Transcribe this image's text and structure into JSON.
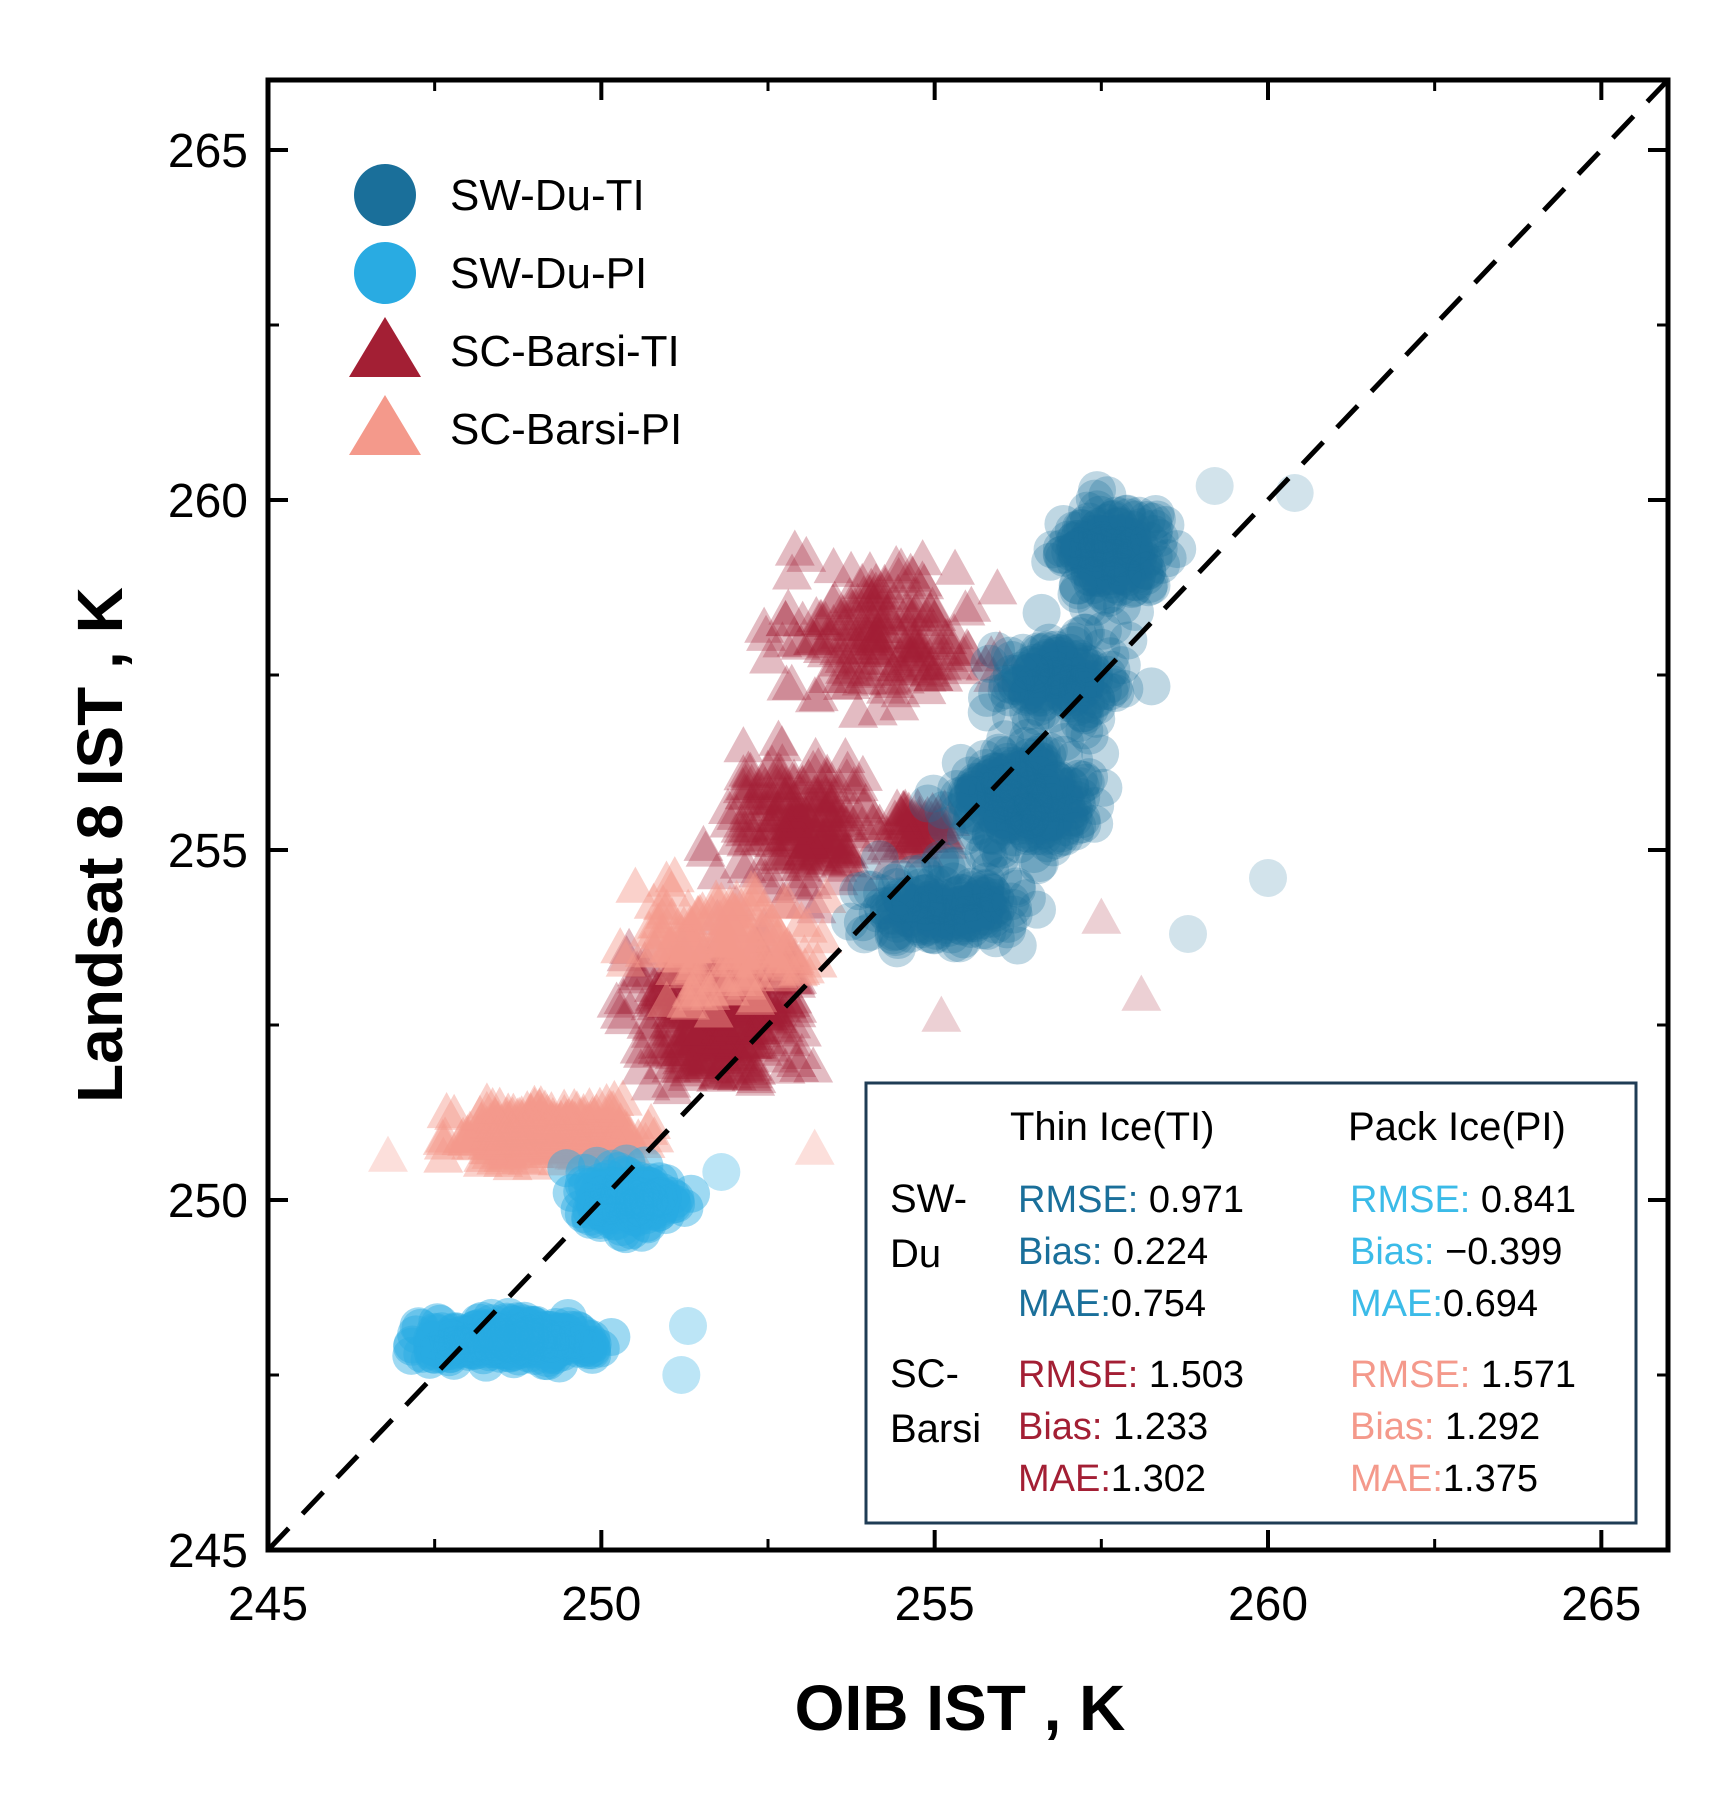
{
  "chart_data": {
    "type": "scatter",
    "title": "",
    "xlabel": "OIB IST , K",
    "ylabel": "Landsat 8 IST , K",
    "xlim": [
      245,
      266
    ],
    "ylim": [
      245,
      266
    ],
    "xticks": [
      245,
      250,
      255,
      260,
      265
    ],
    "yticks": [
      245,
      250,
      255,
      260,
      265
    ],
    "xtick_labels": [
      "245",
      "250",
      "255",
      "260",
      "265"
    ],
    "ytick_labels": [
      "245",
      "250",
      "255",
      "260",
      "265"
    ],
    "reference_line": {
      "type": "1:1",
      "style": "dashed",
      "color": "#000000"
    },
    "legend_position": "top-left",
    "series": [
      {
        "name": "SW-Du-TI",
        "marker": "circle",
        "color": "#1a6f9a",
        "opacity": 0.28,
        "clusters": [
          {
            "x_range": [
              256.3,
              258.9
            ],
            "y_range": [
              258.2,
              260.3
            ],
            "count": 170
          },
          {
            "x_range": [
              255.4,
              258.3
            ],
            "y_range": [
              256.5,
              258.4
            ],
            "count": 150
          },
          {
            "x_range": [
              254.8,
              257.8
            ],
            "y_range": [
              254.6,
              256.8
            ],
            "count": 260
          },
          {
            "x_range": [
              253.5,
              256.8
            ],
            "y_range": [
              253.4,
              255.0
            ],
            "count": 170
          }
        ],
        "outliers": [
          [
            260.0,
            254.6
          ],
          [
            258.8,
            253.8
          ],
          [
            259.2,
            260.2
          ],
          [
            260.4,
            260.1
          ]
        ]
      },
      {
        "name": "SW-Du-PI",
        "marker": "circle",
        "color": "#29abe2",
        "opacity": 0.45,
        "clusters": [
          {
            "x_range": [
              246.8,
              250.4
            ],
            "y_range": [
              247.6,
              248.4
            ],
            "count": 300
          },
          {
            "x_range": [
              249.2,
              251.6
            ],
            "y_range": [
              249.4,
              250.6
            ],
            "count": 150
          }
        ],
        "outliers": [
          [
            251.2,
            247.5
          ],
          [
            251.3,
            248.2
          ],
          [
            251.8,
            250.4
          ]
        ]
      },
      {
        "name": "SC-Barsi-TI",
        "marker": "triangle",
        "color": "#a31f34",
        "opacity": 0.3,
        "clusters": [
          {
            "x_range": [
              249.8,
              253.6
            ],
            "y_range": [
              251.2,
              254.2
            ],
            "count": 360
          },
          {
            "x_range": [
              251.2,
              254.8
            ],
            "y_range": [
              254.0,
              256.8
            ],
            "count": 200
          },
          {
            "x_range": [
              252.0,
              256.3
            ],
            "y_range": [
              256.5,
              259.6
            ],
            "count": 180
          },
          {
            "x_range": [
              253.8,
              255.6
            ],
            "y_range": [
              254.8,
              255.8
            ],
            "count": 60
          }
        ],
        "outliers": [
          [
            258.1,
            252.9
          ],
          [
            255.1,
            252.6
          ],
          [
            257.5,
            254.0
          ]
        ]
      },
      {
        "name": "SC-Barsi-PI",
        "marker": "triangle",
        "color": "#f4998b",
        "opacity": 0.45,
        "clusters": [
          {
            "x_range": [
              247.2,
              251.2
            ],
            "y_range": [
              250.4,
              251.5
            ],
            "count": 320
          },
          {
            "x_range": [
              249.8,
              253.8
            ],
            "y_range": [
              252.4,
              254.9
            ],
            "count": 150
          }
        ],
        "outliers": [
          [
            246.8,
            250.6
          ],
          [
            253.2,
            250.7
          ]
        ]
      }
    ],
    "stats_table": {
      "col_headers": [
        "Thin Ice(TI)",
        "Pack Ice(PI)"
      ],
      "rows": [
        {
          "label_lines": [
            "SW-",
            "Du"
          ],
          "TI": {
            "color": "#1a6f9a",
            "lines": [
              [
                "RMSE:",
                " 0.971"
              ],
              [
                "Bias:",
                " 0.224"
              ],
              [
                "MAE:",
                "0.754"
              ]
            ]
          },
          "PI": {
            "color": "#3bbbe8",
            "lines": [
              [
                "RMSE:",
                " 0.841"
              ],
              [
                "Bias:",
                " −0.399"
              ],
              [
                "MAE:",
                "0.694"
              ]
            ]
          }
        },
        {
          "label_lines": [
            "SC-",
            "Barsi"
          ],
          "TI": {
            "color": "#a31f34",
            "lines": [
              [
                "RMSE:",
                " 1.503"
              ],
              [
                "Bias:",
                " 1.233"
              ],
              [
                "MAE:",
                "1.302"
              ]
            ]
          },
          "PI": {
            "color": "#f4998b",
            "lines": [
              [
                "RMSE:",
                " 1.571"
              ],
              [
                "Bias:",
                " 1.292"
              ],
              [
                "MAE:",
                "1.375"
              ]
            ]
          }
        }
      ]
    }
  }
}
